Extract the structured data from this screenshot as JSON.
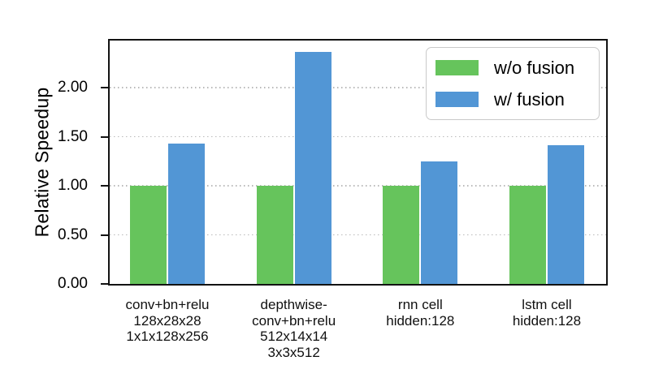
{
  "chart_data": {
    "type": "bar",
    "title": "",
    "ylabel": "Relative Speedup",
    "xlabel": "",
    "ylim": [
      0,
      2.5
    ],
    "yticks": [
      0,
      0.5,
      1.0,
      1.5,
      2.0
    ],
    "ytick_labels": [
      "0.00",
      "0.50",
      "1.00",
      "1.50",
      "2.00"
    ],
    "grid": true,
    "grid_style": "dotted",
    "legend_position": "upper right",
    "categories": [
      {
        "lines": [
          "conv+bn+relu",
          "128x28x28",
          "1x1x128x256"
        ]
      },
      {
        "lines": [
          "depthwise-",
          "conv+bn+relu",
          "512x14x14",
          "3x3x512"
        ]
      },
      {
        "lines": [
          "rnn cell",
          "hidden:128"
        ]
      },
      {
        "lines": [
          "lstm cell",
          "hidden:128"
        ]
      }
    ],
    "series": [
      {
        "name": "w/o fusion",
        "slug": "wo-fusion",
        "color": "#66c45c",
        "values": [
          1.0,
          1.0,
          1.0,
          1.0
        ]
      },
      {
        "name": "w/ fusion",
        "slug": "w-fusion",
        "color": "#5296d5",
        "values": [
          1.43,
          2.36,
          1.25,
          1.41
        ]
      }
    ]
  },
  "colors": {
    "axis": "#131313",
    "grid": "#b9b9b9",
    "legend_border": "#c9c9c9",
    "background": "#ffffff",
    "text": "#000000"
  }
}
